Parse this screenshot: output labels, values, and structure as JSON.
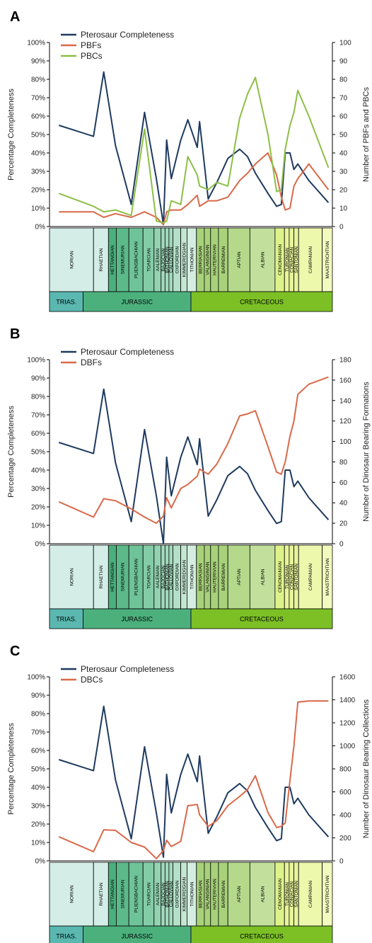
{
  "colors": {
    "pterosaur": "#1e3a5f",
    "red_series": "#d9694a",
    "green_series": "#8cbf45",
    "axis": "#000000",
    "text": "#222222"
  },
  "timescale": {
    "stages": [
      {
        "name": "NORIAN",
        "start": 0,
        "end": 2.8,
        "color": "#d4ede7"
      },
      {
        "name": "RHAETIAN",
        "start": 2.8,
        "end": 3.75,
        "color": "#d4ede7"
      },
      {
        "name": "HETTANGIAN",
        "start": 3.75,
        "end": 4.25,
        "color": "#4aaf7d"
      },
      {
        "name": "SINEMURIAN",
        "start": 4.25,
        "end": 5.05,
        "color": "#5cb98a"
      },
      {
        "name": "PLIENSBACHIAN",
        "start": 5.05,
        "end": 5.95,
        "color": "#6fc398"
      },
      {
        "name": "TOARCIAN",
        "start": 5.95,
        "end": 6.65,
        "color": "#84cca7"
      },
      {
        "name": "AALENIAN",
        "start": 6.65,
        "end": 7.1,
        "color": "#93d3b2"
      },
      {
        "name": "BAJOCIAN",
        "start": 7.1,
        "end": 7.35,
        "color": "#a3d9bd"
      },
      {
        "name": "BATHONIAN",
        "start": 7.35,
        "end": 7.6,
        "color": "#a3d9bd"
      },
      {
        "name": "CALLOVIAN",
        "start": 7.6,
        "end": 7.85,
        "color": "#a3d9bd"
      },
      {
        "name": "OXFORDIAN",
        "start": 7.85,
        "end": 8.35,
        "color": "#b4e0c8"
      },
      {
        "name": "KIMMERIDGIAN",
        "start": 8.35,
        "end": 8.75,
        "color": "#c4e7d3"
      },
      {
        "name": "TITHONIAN",
        "start": 8.75,
        "end": 9.35,
        "color": "#d4ede0"
      },
      {
        "name": "BERRIASIAN",
        "start": 9.35,
        "end": 9.85,
        "color": "#a8d27a"
      },
      {
        "name": "VALANGINIAN",
        "start": 9.85,
        "end": 10.25,
        "color": "#a8d27a"
      },
      {
        "name": "HAUTERIVIAN",
        "start": 10.25,
        "end": 10.75,
        "color": "#a8d27a"
      },
      {
        "name": "BARREMIAN",
        "start": 10.75,
        "end": 11.35,
        "color": "#a8d27a"
      },
      {
        "name": "APTIAN",
        "start": 11.35,
        "end": 12.75,
        "color": "#b4d98b"
      },
      {
        "name": "ALBIAN",
        "start": 12.75,
        "end": 14.35,
        "color": "#c2e09c"
      },
      {
        "name": "CENOMANIAN",
        "start": 14.35,
        "end": 14.95,
        "color": "#def28a"
      },
      {
        "name": "TURONIAN",
        "start": 14.95,
        "end": 15.25,
        "color": "#e7f59b"
      },
      {
        "name": "CONIACIAN",
        "start": 15.25,
        "end": 15.55,
        "color": "#e7f59b"
      },
      {
        "name": "SANTONIAN",
        "start": 15.55,
        "end": 15.85,
        "color": "#e7f59b"
      },
      {
        "name": "CAMPANIAN",
        "start": 15.85,
        "end": 17.35,
        "color": "#eef8ad"
      },
      {
        "name": "MAASTRICHTIAN",
        "start": 17.35,
        "end": 18.0,
        "color": "#f2fabd"
      }
    ],
    "periods": [
      {
        "name": "TRIAS.",
        "start": 0,
        "end": 1.9,
        "color": "#5ab8b0"
      },
      {
        "name": "JURASSIC",
        "start": 1.9,
        "end": 8.0,
        "color": "#4cb07d"
      },
      {
        "name": "CRETACEOUS",
        "start": 8.0,
        "end": 16.0,
        "color": "#7cc026"
      }
    ]
  },
  "chart_data": [
    {
      "panel": "A",
      "type": "line",
      "ylabel": "Percentage Completeness",
      "y2label": "Number of PBFs and PBCs",
      "ylim": [
        0,
        100
      ],
      "y2lim": [
        0,
        100
      ],
      "yticks": [
        "0%",
        "10%",
        "20%",
        "30%",
        "40%",
        "50%",
        "60%",
        "70%",
        "80%",
        "90%",
        "100%"
      ],
      "y2ticks": [
        "0",
        "10",
        "20",
        "30",
        "40",
        "50",
        "60",
        "70",
        "80",
        "90",
        "100"
      ],
      "legend_position": "top-left",
      "series": [
        {
          "name": "Pterosaur Completeness",
          "axis": "left",
          "color": "#1e3a5f",
          "x": [
            0.6,
            2.8,
            3.45,
            4.2,
            5.2,
            6.05,
            6.8,
            7.25,
            7.45,
            7.75,
            8.35,
            8.8,
            9.4,
            9.55,
            10.1,
            10.65,
            11.35,
            12.1,
            12.6,
            13.1,
            13.9,
            14.45,
            14.75,
            15.0,
            15.3,
            15.55,
            15.8,
            16.5,
            17.75
          ],
          "y": [
            55,
            49,
            84,
            44,
            12,
            62,
            26,
            1,
            47,
            26,
            47,
            58,
            43,
            57,
            15,
            24,
            37,
            42,
            38,
            29,
            18,
            11,
            12,
            40,
            40,
            31,
            34,
            25,
            13
          ]
        },
        {
          "name": "PBFs",
          "axis": "right",
          "color": "#d9694a",
          "x": [
            0.6,
            2.8,
            3.45,
            4.2,
            5.2,
            6.05,
            6.8,
            7.25,
            7.45,
            7.75,
            8.35,
            8.8,
            9.4,
            9.55,
            10.1,
            10.65,
            11.35,
            12.1,
            12.6,
            13.1,
            13.9,
            14.45,
            14.75,
            15.0,
            15.3,
            15.55,
            15.8,
            16.5,
            17.75
          ],
          "y": [
            8,
            8,
            5,
            7,
            5,
            8,
            5,
            1,
            8,
            9,
            9,
            12,
            17,
            11,
            14,
            14,
            16,
            25,
            29,
            34,
            40,
            28,
            16,
            9,
            10,
            22,
            26,
            34,
            20
          ]
        },
        {
          "name": "PBCs",
          "axis": "right",
          "color": "#8cbf45",
          "x": [
            0.6,
            2.8,
            3.45,
            4.2,
            5.2,
            6.05,
            6.8,
            7.25,
            7.45,
            7.75,
            8.35,
            8.8,
            9.4,
            9.55,
            10.1,
            10.65,
            11.35,
            12.1,
            12.6,
            13.1,
            13.9,
            14.45,
            14.75,
            15.0,
            15.3,
            15.55,
            15.8,
            16.5,
            17.75
          ],
          "y": [
            18,
            11,
            8,
            9,
            6,
            53,
            3,
            2,
            3,
            14,
            12,
            38,
            28,
            22,
            20,
            24,
            22,
            59,
            72,
            81,
            50,
            19,
            20,
            42,
            55,
            62,
            74,
            60,
            32
          ]
        }
      ]
    },
    {
      "panel": "B",
      "type": "line",
      "ylabel": "Percentage Completeness",
      "y2label": "Number of Dinosaur Bearing Formations",
      "ylim": [
        0,
        100
      ],
      "y2lim": [
        0,
        180
      ],
      "yticks": [
        "0%",
        "10%",
        "20%",
        "30%",
        "40%",
        "50%",
        "60%",
        "70%",
        "80%",
        "90%",
        "100%"
      ],
      "y2ticks": [
        "0",
        "20",
        "40",
        "60",
        "80",
        "100",
        "120",
        "140",
        "160",
        "180"
      ],
      "legend_position": "top-left",
      "series": [
        {
          "name": "Pterosaur Completeness",
          "axis": "left",
          "color": "#1e3a5f",
          "x": [
            0.6,
            2.8,
            3.45,
            4.2,
            5.2,
            6.05,
            6.8,
            7.25,
            7.45,
            7.75,
            8.35,
            8.8,
            9.4,
            9.55,
            10.1,
            10.65,
            11.35,
            12.1,
            12.6,
            13.1,
            13.9,
            14.45,
            14.75,
            15.0,
            15.3,
            15.55,
            15.8,
            16.5,
            17.75
          ],
          "y": [
            55,
            49,
            84,
            44,
            12,
            62,
            26,
            0,
            47,
            26,
            47,
            58,
            43,
            57,
            15,
            24,
            37,
            42,
            38,
            29,
            18,
            11,
            12,
            40,
            40,
            31,
            34,
            25,
            13
          ]
        },
        {
          "name": "DBFs",
          "axis": "right",
          "color": "#d9694a",
          "x": [
            0.6,
            2.8,
            3.45,
            4.2,
            5.2,
            6.05,
            6.8,
            7.25,
            7.45,
            7.75,
            8.35,
            8.8,
            9.4,
            9.55,
            10.1,
            10.65,
            11.35,
            12.1,
            12.6,
            13.1,
            13.9,
            14.45,
            14.75,
            15.0,
            15.3,
            15.55,
            15.8,
            16.5,
            17.75
          ],
          "y": [
            41,
            26,
            44,
            42,
            34,
            26,
            20,
            27,
            45,
            35,
            54,
            58,
            66,
            73,
            68,
            78,
            98,
            125,
            127,
            130,
            95,
            70,
            68,
            80,
            105,
            120,
            146,
            156,
            163
          ]
        }
      ]
    },
    {
      "panel": "C",
      "type": "line",
      "ylabel": "Percentage Completeness",
      "y2label": "Number of Dinosaur Bearing Collections",
      "ylim": [
        0,
        100
      ],
      "y2lim": [
        0,
        1600
      ],
      "yticks": [
        "0%",
        "10%",
        "20%",
        "30%",
        "40%",
        "50%",
        "60%",
        "70%",
        "80%",
        "90%",
        "100%"
      ],
      "y2ticks": [
        "0",
        "200",
        "400",
        "600",
        "800",
        "1000",
        "1200",
        "1400",
        "1600"
      ],
      "legend_position": "top-left",
      "series": [
        {
          "name": "Pterosaur Completeness",
          "axis": "left",
          "color": "#1e3a5f",
          "x": [
            0.6,
            2.8,
            3.45,
            4.2,
            5.2,
            6.05,
            6.8,
            7.25,
            7.45,
            7.75,
            8.35,
            8.8,
            9.4,
            9.55,
            10.1,
            10.65,
            11.35,
            12.1,
            12.6,
            13.1,
            13.9,
            14.45,
            14.75,
            15.0,
            15.3,
            15.55,
            15.8,
            16.5,
            17.75
          ],
          "y": [
            55,
            49,
            84,
            44,
            12,
            62,
            26,
            2,
            47,
            26,
            47,
            58,
            43,
            57,
            15,
            24,
            37,
            42,
            38,
            29,
            18,
            11,
            12,
            40,
            40,
            31,
            34,
            25,
            13
          ]
        },
        {
          "name": "DBCs",
          "axis": "right",
          "color": "#d9694a",
          "x": [
            0.6,
            2.8,
            3.45,
            4.2,
            5.2,
            6.05,
            6.8,
            7.25,
            7.45,
            7.75,
            8.35,
            8.8,
            9.4,
            9.55,
            10.1,
            10.65,
            11.35,
            12.1,
            12.6,
            13.1,
            13.9,
            14.45,
            14.75,
            15.0,
            15.3,
            15.55,
            15.8,
            16.5,
            17.75
          ],
          "y": [
            210,
            80,
            270,
            265,
            160,
            120,
            20,
            90,
            180,
            125,
            170,
            480,
            490,
            400,
            300,
            350,
            480,
            560,
            620,
            740,
            420,
            290,
            300,
            330,
            700,
            1000,
            1380,
            1390,
            1390
          ]
        }
      ]
    }
  ]
}
